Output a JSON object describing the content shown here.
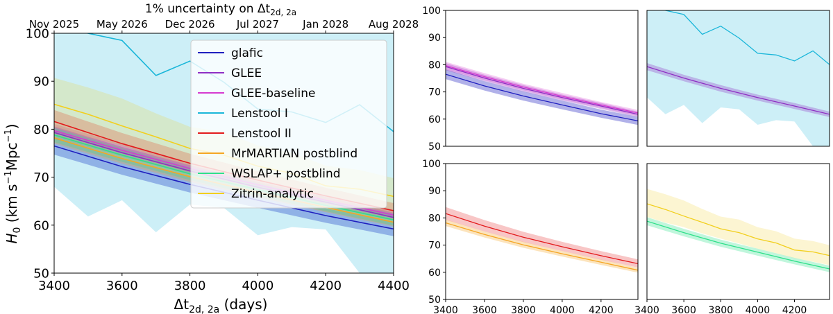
{
  "figure": {
    "top_title": "1% uncertainty on Δt",
    "top_title_sub": "2d, 2a",
    "top_ticks": [
      "Nov 2025",
      "May 2026",
      "Dec 2026",
      "Jul 2027",
      "Jan 2028",
      "Aug 2028"
    ],
    "ylabel": "H",
    "ylabel_sub": "0",
    "ylabel_units": "(km s",
    "ylabel_sup1": "−1",
    "ylabel_mpc": "Mpc",
    "ylabel_sup2": "−1",
    "ylabel_close": ")",
    "xlabel": "Δt",
    "xlabel_sub": "2d, 2a",
    "xlabel_units": "(days)"
  },
  "chart_data": [
    {
      "id": "main",
      "type": "line",
      "xlim": [
        3400,
        4400
      ],
      "ylim": [
        50,
        100
      ],
      "xticks": [
        3400,
        3600,
        3800,
        4000,
        4200,
        4400
      ],
      "yticks": [
        50,
        60,
        70,
        80,
        90,
        100
      ],
      "legend_position": "top-center",
      "series": [
        {
          "name": "glafic",
          "color": "#1f1fbf",
          "x": [
            3400,
            3600,
            3800,
            4000,
            4200,
            4400
          ],
          "y": [
            76.5,
            72.2,
            68.5,
            65.2,
            62.0,
            59.2
          ],
          "lo": [
            74.7,
            70.5,
            66.8,
            63.6,
            60.5,
            57.7
          ],
          "hi": [
            78.3,
            73.9,
            70.2,
            66.8,
            63.5,
            60.7
          ],
          "band_alpha": 0.35
        },
        {
          "name": "GLEE",
          "color": "#8e2fc4",
          "x": [
            3400,
            3600,
            3800,
            4000,
            4200,
            4400
          ],
          "y": [
            79.3,
            75.1,
            71.3,
            67.9,
            64.8,
            61.6
          ],
          "lo": [
            78.0,
            73.9,
            70.1,
            66.8,
            63.7,
            60.6
          ],
          "hi": [
            80.6,
            76.3,
            72.5,
            69.0,
            65.9,
            62.6
          ],
          "band_alpha": 0.3
        },
        {
          "name": "GLEE-baseline",
          "color": "#d63ad0",
          "x": [
            3400,
            3600,
            3800,
            4000,
            4200,
            4400
          ],
          "y": [
            79.7,
            75.6,
            71.8,
            68.4,
            65.2,
            62.1
          ],
          "lo": [
            78.3,
            74.3,
            70.6,
            67.2,
            64.1,
            61.0
          ],
          "hi": [
            81.1,
            76.9,
            73.0,
            69.6,
            66.3,
            63.2
          ],
          "band_alpha": 0.25
        },
        {
          "name": "Lenstool I",
          "color": "#1ab6d9",
          "x": [
            3400,
            3500,
            3600,
            3700,
            3800,
            3900,
            4000,
            4100,
            4200,
            4300,
            4400
          ],
          "y": [
            101,
            100,
            98.5,
            91.2,
            94.2,
            89.8,
            84.2,
            83.6,
            81.4,
            85.1,
            79.5
          ],
          "lo": [
            68.0,
            61.8,
            65.2,
            58.5,
            64.3,
            63.6,
            57.9,
            59.6,
            59.1,
            50.0,
            49.0
          ],
          "hi": [
            100.0,
            100.0,
            100.0,
            100.0,
            100.0,
            100.0,
            100.0,
            100.0,
            100.0,
            100.0,
            100.0
          ],
          "band_alpha": 0.22
        },
        {
          "name": "Lenstool II",
          "color": "#e31a1c",
          "x": [
            3400,
            3600,
            3800,
            4000,
            4200,
            4400
          ],
          "y": [
            81.6,
            77.0,
            72.9,
            69.4,
            66.1,
            63.0
          ],
          "lo": [
            79.3,
            75.0,
            71.1,
            67.8,
            64.6,
            61.6
          ],
          "hi": [
            84.0,
            79.2,
            74.9,
            71.2,
            67.8,
            64.6
          ],
          "band_alpha": 0.25
        },
        {
          "name": "MrMARTIAN postblind",
          "color": "#f5a623",
          "x": [
            3400,
            3600,
            3800,
            4000,
            4200,
            4400
          ],
          "y": [
            78.2,
            73.9,
            70.1,
            66.8,
            63.7,
            60.6
          ],
          "lo": [
            77.0,
            72.8,
            69.0,
            65.8,
            62.7,
            59.7
          ],
          "hi": [
            79.4,
            75.0,
            71.2,
            67.8,
            64.7,
            61.5
          ],
          "band_alpha": 0.3
        },
        {
          "name": "WSLAP+ postblind",
          "color": "#2fe08a",
          "x": [
            3400,
            3600,
            3800,
            4000,
            4200,
            4400
          ],
          "y": [
            78.8,
            74.6,
            70.7,
            67.4,
            64.1,
            61.1
          ],
          "lo": [
            77.3,
            73.2,
            69.4,
            66.1,
            62.9,
            59.9
          ],
          "hi": [
            80.3,
            76.0,
            72.0,
            68.7,
            65.3,
            62.3
          ],
          "band_alpha": 0.3
        },
        {
          "name": "Zitrin-analytic",
          "color": "#f2cf1d",
          "x": [
            3400,
            3500,
            3600,
            3700,
            3800,
            3900,
            4000,
            4100,
            4200,
            4300,
            4400
          ],
          "y": [
            85.2,
            83.1,
            80.7,
            78.4,
            76.0,
            74.6,
            72.3,
            70.8,
            68.2,
            67.5,
            66.0
          ],
          "lo": [
            80.4,
            78.3,
            76.6,
            74.3,
            72.4,
            70.6,
            68.7,
            67.0,
            65.2,
            63.9,
            62.5
          ],
          "hi": [
            90.7,
            88.7,
            86.4,
            83.3,
            80.5,
            79.4,
            76.6,
            75.1,
            72.4,
            71.5,
            69.8
          ],
          "band_alpha": 0.2
        }
      ]
    },
    {
      "id": "panel-top-left",
      "type": "line",
      "xlim": [
        3400,
        4390
      ],
      "ylim": [
        50,
        100
      ],
      "yticks": [
        50,
        60,
        70,
        80,
        90,
        100
      ],
      "series_ref": [
        "glafic",
        "GLEE",
        "GLEE-baseline"
      ]
    },
    {
      "id": "panel-top-right",
      "type": "line",
      "xlim": [
        3400,
        4390
      ],
      "ylim": [
        50,
        100
      ],
      "series_ref": [
        "Lenstool I",
        "GLEE"
      ]
    },
    {
      "id": "panel-bottom-left",
      "type": "line",
      "xlim": [
        3400,
        4390
      ],
      "ylim": [
        50,
        100
      ],
      "xticks": [
        3400,
        3600,
        3800,
        4000,
        4200
      ],
      "yticks": [
        50,
        60,
        70,
        80,
        90,
        100
      ],
      "series_ref": [
        "Lenstool II",
        "MrMARTIAN postblind"
      ]
    },
    {
      "id": "panel-bottom-right",
      "type": "line",
      "xlim": [
        3400,
        4390
      ],
      "ylim": [
        50,
        100
      ],
      "xticks": [
        3400,
        3600,
        3800,
        4000,
        4200
      ],
      "series_ref": [
        "Zitrin-analytic",
        "WSLAP+ postblind"
      ]
    }
  ]
}
